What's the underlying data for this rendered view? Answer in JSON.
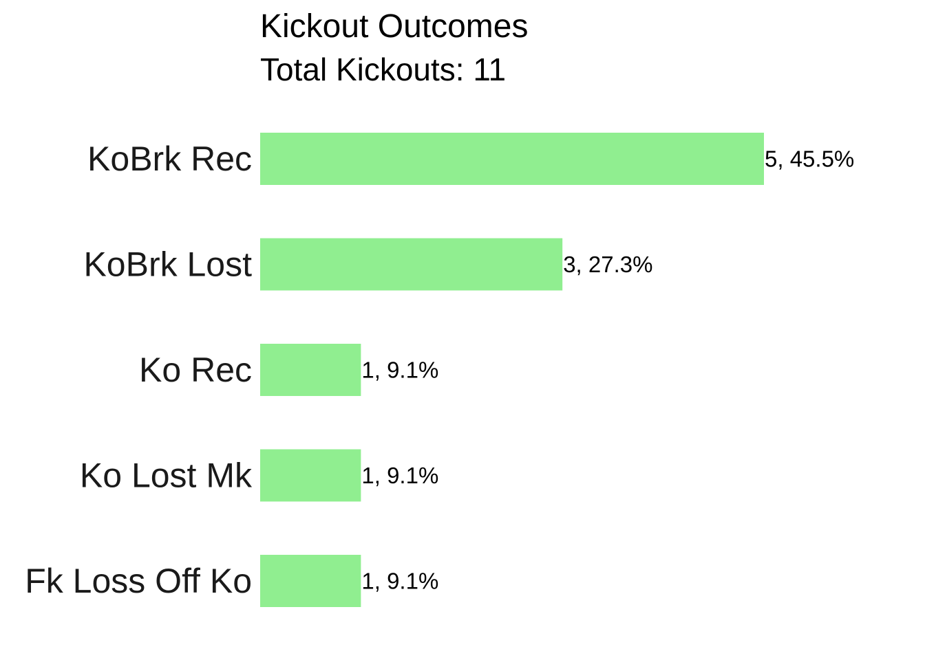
{
  "chart_data": {
    "type": "bar",
    "orientation": "horizontal",
    "title": "Kickout Outcomes",
    "subtitle": "Total Kickouts: 11",
    "categories": [
      "KoBrk Rec",
      "KoBrk Lost",
      "Ko Rec",
      "Ko Lost Mk",
      "Fk Loss Off Ko"
    ],
    "values": [
      5,
      3,
      1,
      1,
      1
    ],
    "data_labels": [
      "5, 45.5%",
      "3, 27.3%",
      "1, 9.1%",
      "1, 9.1%",
      "1, 9.1%"
    ],
    "xlim": [
      0,
      5
    ],
    "grid": false,
    "legend": "none",
    "bar_color": "#90ee90"
  }
}
